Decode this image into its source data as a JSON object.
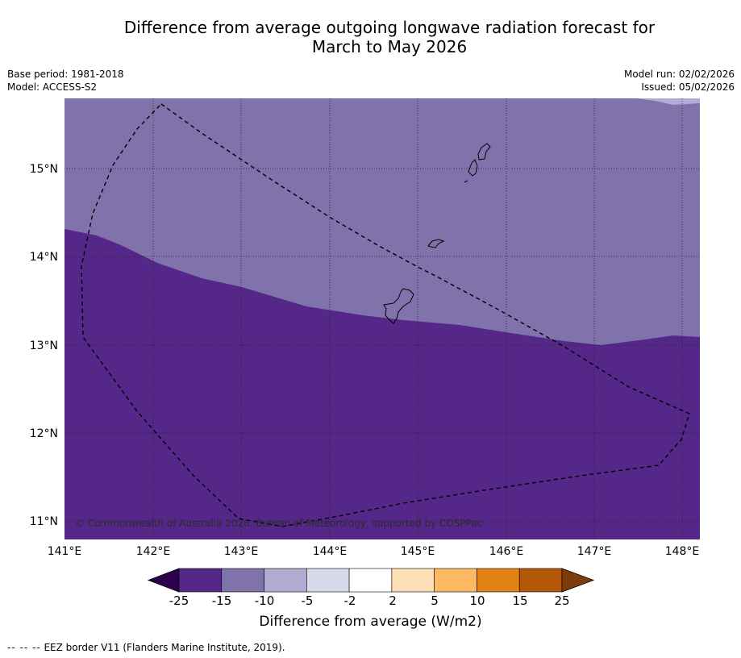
{
  "title_line1": "Difference from average outgoing longwave radiation forecast for",
  "title_line2": "March to May 2026",
  "base_period": "Base period: 1981-2018",
  "model": "Model: ACCESS-S2",
  "model_run": "Model run: 02/02/2026",
  "issued": "Issued: 05/02/2026",
  "map": {
    "lon_labels": [
      "141°E",
      "142°E",
      "143°E",
      "144°E",
      "145°E",
      "146°E",
      "147°E",
      "148°E"
    ],
    "lat_labels": [
      "15°N",
      "14°N",
      "13°N",
      "12°N",
      "11°N"
    ],
    "copyright": "© Commonwealth of Australia 2026, Bureau of Meteorology, supported by COSPPac",
    "colors": {
      "region_minus15_to_minus25": "#542788",
      "region_minus10_to_minus15": "#8073ac",
      "region_minus5_to_minus10": "#b2abd2"
    }
  },
  "colorbar": {
    "tick_labels": [
      "-25",
      "-15",
      "-10",
      "-5",
      "-2",
      "2",
      "5",
      "10",
      "15",
      "25"
    ],
    "colors": [
      "#2d004b",
      "#542788",
      "#8073ac",
      "#b2abd2",
      "#d8daeb",
      "#ffffff",
      "#fee0b6",
      "#fdb863",
      "#e08214",
      "#b35806",
      "#7f3b08"
    ],
    "title": "Difference from average (W/m2)"
  },
  "footer": {
    "dashes": "--  --  --",
    "text": "EEZ border V11 (Flanders Marine Institute, 2019)."
  }
}
